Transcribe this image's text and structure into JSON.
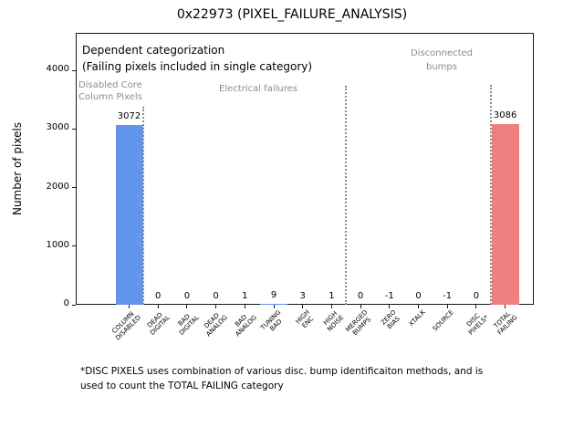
{
  "annotations": {
    "dependent_line1": "Dependent categorization",
    "dependent_line2": "(Failing pixels included in single category)",
    "disabled_core_line1": "Disabled Core",
    "disabled_core_line2": "Column Pixels",
    "electrical": "Electrical failures",
    "disconnected_line1": "Disconnected",
    "disconnected_line2": "bumps",
    "footnote_line1": "*DISC PIXELS uses combination of various disc. bump identificaiton methods, and is",
    "footnote_line2": "used to count the TOTAL FAILING category"
  },
  "chart_data": {
    "type": "bar",
    "title": "0x22973 (PIXEL_FAILURE_ANALYSIS)",
    "ylabel": "Number of pixels",
    "categories": [
      [
        "COLUMN",
        "DISABLED"
      ],
      [
        "DEAD",
        "DIGITAL"
      ],
      [
        "BAD",
        "DIGITAL"
      ],
      [
        "DEAD",
        "ANALOG"
      ],
      [
        "BAD",
        "ANALOG"
      ],
      [
        "TUNING",
        "BAD"
      ],
      [
        "HIGH",
        "ENC"
      ],
      [
        "HIGH",
        "NOISE"
      ],
      [
        "MERGED",
        "BUMPS"
      ],
      [
        "ZERO",
        "BIAS"
      ],
      [
        "XTALK"
      ],
      [
        "SOURCE"
      ],
      [
        "DISC",
        "PIXELS*"
      ],
      [
        "TOTAL",
        "FAILING"
      ]
    ],
    "values": [
      3072,
      0,
      0,
      0,
      1,
      9,
      3,
      1,
      0,
      -1,
      0,
      -1,
      0,
      3086
    ],
    "bar_colors": [
      "#6495ED",
      "#6495ED",
      "#6495ED",
      "#6495ED",
      "#6495ED",
      "#6495ED",
      "#6495ED",
      "#6495ED",
      "#6495ED",
      "#6495ED",
      "#6495ED",
      "#6495ED",
      "#6495ED",
      "#F08080"
    ],
    "yticks": [
      0,
      1000,
      2000,
      3000,
      4000
    ],
    "ylim": [
      0,
      4630
    ],
    "grid": false,
    "legend": "none",
    "dividers": [
      {
        "after_index": 0,
        "top": 117
      },
      {
        "after_index": 7,
        "top": 94
      },
      {
        "after_index": 12,
        "top": 93
      }
    ],
    "colors": {
      "default_bar": "#6495ED",
      "total_bar": "#F08080",
      "section_text": "#8c8c8c",
      "divider": "#8c8c8c"
    }
  }
}
